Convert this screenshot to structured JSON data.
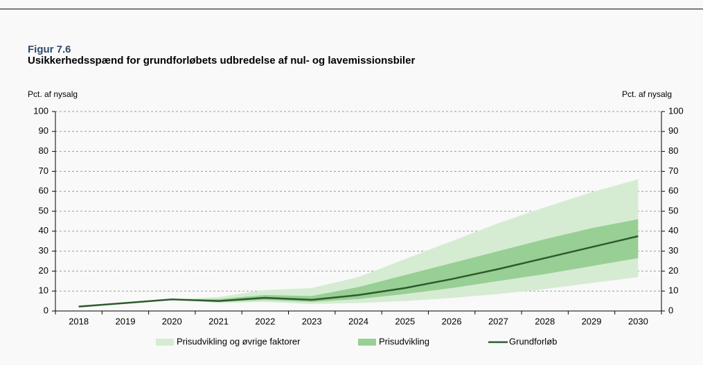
{
  "chart_data": {
    "type": "band-line",
    "title": "Figur 7.6",
    "subtitle": "Usikkerhedsspænd for grundforløbets udbredelse af nul- og lavemissionsbiler",
    "ylabel": "Pct. af nysalg",
    "y2label": "Pct. af nysalg",
    "categories": [
      "2018",
      "2019",
      "2020",
      "2021",
      "2022",
      "2023",
      "2024",
      "2025",
      "2026",
      "2027",
      "2028",
      "2029",
      "2030"
    ],
    "ylim": [
      0,
      100
    ],
    "yticks": [
      0,
      10,
      20,
      30,
      40,
      50,
      60,
      70,
      80,
      90,
      100
    ],
    "y2lim": [
      0,
      100
    ],
    "y2ticks": [
      0,
      10,
      20,
      30,
      40,
      50,
      60,
      70,
      80,
      90,
      100
    ],
    "grid": true,
    "legend": "bottom",
    "series": [
      {
        "name": "Prisudvikling og øvrige faktorer",
        "kind": "band",
        "color": "#d5ecd3",
        "low": [
          null,
          null,
          5.8,
          4,
          4.5,
          3.5,
          4,
          5,
          6.5,
          8.5,
          11,
          14,
          17
        ],
        "high": [
          null,
          null,
          5.8,
          7,
          10.5,
          11.5,
          17,
          26,
          35,
          44,
          52,
          59.5,
          66
        ]
      },
      {
        "name": "Prisudvikling",
        "kind": "band",
        "color": "#98cf94",
        "low": [
          null,
          null,
          5.8,
          4.5,
          5.5,
          4.5,
          6,
          8.5,
          11.5,
          15,
          18.5,
          22.5,
          26.5
        ],
        "high": [
          null,
          null,
          5.8,
          6,
          8,
          7.5,
          12,
          18,
          24,
          30,
          36,
          41.5,
          46
        ]
      },
      {
        "name": "Grundforløb",
        "kind": "line",
        "color": "#2d5a2d",
        "values": [
          2.2,
          4,
          5.8,
          5,
          6.6,
          5.6,
          8,
          11.5,
          16,
          21,
          26.5,
          32,
          37.5
        ]
      }
    ]
  }
}
